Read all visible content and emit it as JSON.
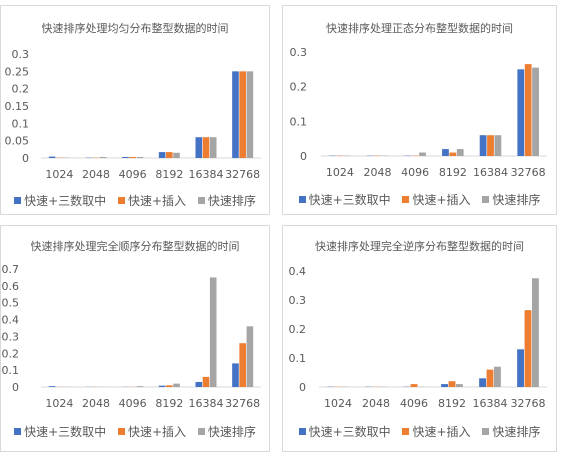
{
  "legend": [
    {
      "name": "快速+三数取中",
      "color": "#4472c4"
    },
    {
      "name": "快速+插入",
      "color": "#ed7d31"
    },
    {
      "name": "快速排序",
      "color": "#a5a5a5"
    }
  ],
  "chart_data": [
    {
      "type": "bar",
      "title": "快速排序处理均匀分布整型数据的时间",
      "categories": [
        "1024",
        "2048",
        "4096",
        "8192",
        "16384",
        "32768"
      ],
      "yticks": [
        "0",
        "0.05",
        "0.1",
        "0.15",
        "0.2",
        "0.25",
        "0.3"
      ],
      "ylim": [
        0,
        0.3
      ],
      "grid": false,
      "legend_position": "bottom",
      "series": [
        {
          "name": "快速+三数取中",
          "values": [
            0.004,
            0.001,
            0.003,
            0.017,
            0.06,
            0.25
          ]
        },
        {
          "name": "快速+插入",
          "values": [
            0.001,
            0.001,
            0.003,
            0.017,
            0.06,
            0.25
          ]
        },
        {
          "name": "快速排序",
          "values": [
            0.001,
            0.003,
            0.003,
            0.015,
            0.06,
            0.25
          ]
        }
      ]
    },
    {
      "type": "bar",
      "title": "快速排序处理正态分布整型数据的时间",
      "categories": [
        "1024",
        "2048",
        "4096",
        "8192",
        "16384",
        "32768"
      ],
      "yticks": [
        "0",
        "0.1",
        "0.2",
        "0.3"
      ],
      "ylim": [
        0,
        0.3
      ],
      "grid": false,
      "legend_position": "bottom",
      "series": [
        {
          "name": "快速+三数取中",
          "values": [
            0.001,
            0.001,
            0.001,
            0.02,
            0.06,
            0.25
          ]
        },
        {
          "name": "快速+插入",
          "values": [
            0.001,
            0.001,
            0.001,
            0.01,
            0.06,
            0.265
          ]
        },
        {
          "name": "快速排序",
          "values": [
            0.001,
            0.001,
            0.01,
            0.02,
            0.06,
            0.255
          ]
        }
      ]
    },
    {
      "type": "bar",
      "title": "快速排序处理完全顺序分布整型数据的时间",
      "categories": [
        "1024",
        "2048",
        "4096",
        "8192",
        "16384",
        "32768"
      ],
      "yticks": [
        "0",
        "0.1",
        "0.2",
        "0.3",
        "0.4",
        "0.5",
        "0.6",
        "0.7"
      ],
      "ylim": [
        0,
        0.7
      ],
      "grid": false,
      "legend_position": "bottom",
      "series": [
        {
          "name": "快速+三数取中",
          "values": [
            0.005,
            0.001,
            0.001,
            0.008,
            0.03,
            0.14
          ]
        },
        {
          "name": "快速+插入",
          "values": [
            0.001,
            0.001,
            0.001,
            0.01,
            0.06,
            0.26
          ]
        },
        {
          "name": "快速排序",
          "values": [
            0.001,
            0.001,
            0.005,
            0.02,
            0.65,
            0.36
          ]
        }
      ]
    },
    {
      "type": "bar",
      "title": "快速排序处理完全逆序分布整型数据的时间",
      "categories": [
        "1024",
        "2048",
        "4096",
        "8192",
        "16384",
        "32768"
      ],
      "yticks": [
        "0",
        "0.1",
        "0.2",
        "0.3",
        "0.4"
      ],
      "ylim": [
        0,
        0.4
      ],
      "grid": false,
      "legend_position": "bottom",
      "series": [
        {
          "name": "快速+三数取中",
          "values": [
            0.001,
            0.001,
            0.001,
            0.01,
            0.03,
            0.13
          ]
        },
        {
          "name": "快速+插入",
          "values": [
            0.001,
            0.001,
            0.01,
            0.02,
            0.06,
            0.265
          ]
        },
        {
          "name": "快速排序",
          "values": [
            0.001,
            0.001,
            0.001,
            0.01,
            0.07,
            0.375
          ]
        }
      ]
    }
  ]
}
